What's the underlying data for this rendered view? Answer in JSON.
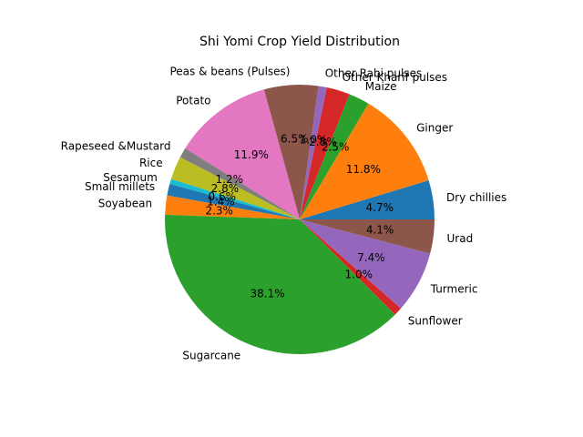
{
  "chart_data": {
    "type": "pie",
    "title": "Shi Yomi Crop Yield Distribution",
    "start_angle_deg": 0,
    "direction": "counterclockwise",
    "slices": [
      {
        "label": "Dry chillies",
        "value": 4.7,
        "pct_label": "4.7%",
        "color": "#1f77b4"
      },
      {
        "label": "Ginger",
        "value": 11.8,
        "pct_label": "11.8%",
        "color": "#ff7f0e"
      },
      {
        "label": "Maize",
        "value": 2.5,
        "pct_label": "2.5%",
        "color": "#2ca02c"
      },
      {
        "label": "Other Kharif pulses",
        "value": 2.8,
        "pct_label": "2.8%",
        "color": "#d62728"
      },
      {
        "label": "Other Rabi pulses",
        "value": 1.0,
        "pct_label": "1.0%",
        "color": "#9467bd"
      },
      {
        "label": "Peas & beans (Pulses)",
        "value": 6.5,
        "pct_label": "6.5%",
        "color": "#8c564b"
      },
      {
        "label": "Potato",
        "value": 11.9,
        "pct_label": "11.9%",
        "color": "#e377c2"
      },
      {
        "label": "Rapeseed &Mustard",
        "value": 1.2,
        "pct_label": "1.2%",
        "color": "#7f7f7f"
      },
      {
        "label": "Rice",
        "value": 2.8,
        "pct_label": "2.8%",
        "color": "#bcbd22"
      },
      {
        "label": "Sesamum",
        "value": 0.6,
        "pct_label": "0.6%",
        "color": "#17becf"
      },
      {
        "label": "Small millets",
        "value": 1.4,
        "pct_label": "1.4%",
        "color": "#1f77b4"
      },
      {
        "label": "Soyabean",
        "value": 2.3,
        "pct_label": "2.3%",
        "color": "#ff7f0e"
      },
      {
        "label": "Sugarcane",
        "value": 38.1,
        "pct_label": "38.1%",
        "color": "#2ca02c"
      },
      {
        "label": "Sunflower",
        "value": 1.0,
        "pct_label": "1.0%",
        "color": "#d62728"
      },
      {
        "label": "Turmeric",
        "value": 7.4,
        "pct_label": "7.4%",
        "color": "#9467bd"
      },
      {
        "label": "Urad",
        "value": 4.1,
        "pct_label": "4.1%",
        "color": "#8c564b"
      }
    ]
  }
}
